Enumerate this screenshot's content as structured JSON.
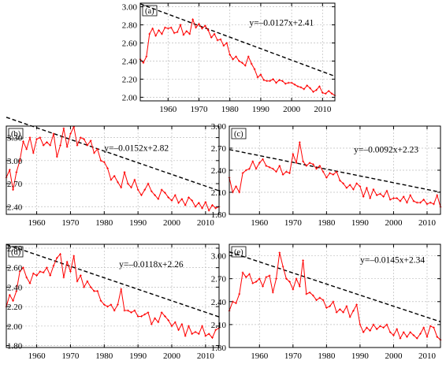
{
  "chart_data": [
    {
      "panel_label": "(a)",
      "type": "line",
      "equation": "y=–0.0127x+2.41",
      "x_start": 1951,
      "x": "1951-2014",
      "values": [
        2.42,
        2.38,
        2.45,
        2.7,
        2.76,
        2.68,
        2.74,
        2.7,
        2.77,
        2.76,
        2.77,
        2.71,
        2.72,
        2.8,
        2.69,
        2.73,
        2.7,
        2.86,
        2.77,
        2.81,
        2.76,
        2.79,
        2.74,
        2.66,
        2.7,
        2.63,
        2.64,
        2.57,
        2.6,
        2.47,
        2.42,
        2.45,
        2.4,
        2.38,
        2.35,
        2.45,
        2.37,
        2.31,
        2.22,
        2.25,
        2.19,
        2.18,
        2.18,
        2.2,
        2.16,
        2.19,
        2.18,
        2.15,
        2.16,
        2.16,
        2.14,
        2.12,
        2.11,
        2.09,
        2.13,
        2.1,
        2.06,
        2.08,
        2.12,
        2.05,
        2.04,
        2.07,
        2.04,
        2.02
      ],
      "trend": {
        "slope": -0.0127,
        "intercept": 2.41
      },
      "xlim": [
        1951,
        2014
      ],
      "ylim": [
        1.96,
        3.04
      ],
      "xticks": [
        1960,
        1970,
        1980,
        1990,
        2000,
        2010
      ],
      "yticks": [
        "2.00",
        "2.20",
        "2.40",
        "2.60",
        "2.80",
        "3.00"
      ],
      "grid": true,
      "colors": {
        "series": "#ff0000",
        "trend": "#000000",
        "grid": "#bdbdbd"
      }
    },
    {
      "panel_label": "(b)",
      "type": "line",
      "equation": "y=–0.0152x+2.82",
      "x_start": 1951,
      "x": "1951-2014",
      "values": [
        2.78,
        2.88,
        2.62,
        2.85,
        3.0,
        3.25,
        3.15,
        3.3,
        3.1,
        3.28,
        3.3,
        3.2,
        3.24,
        3.2,
        3.35,
        3.05,
        3.2,
        3.42,
        3.18,
        3.35,
        3.44,
        3.2,
        3.3,
        3.28,
        3.2,
        3.26,
        3.1,
        3.15,
        3.0,
        2.98,
        2.9,
        2.75,
        2.8,
        2.72,
        2.65,
        2.85,
        2.7,
        2.65,
        2.75,
        2.62,
        2.55,
        2.62,
        2.7,
        2.6,
        2.55,
        2.5,
        2.62,
        2.58,
        2.52,
        2.48,
        2.55,
        2.45,
        2.5,
        2.42,
        2.52,
        2.48,
        2.4,
        2.45,
        2.38,
        2.46,
        2.35,
        2.42,
        2.38,
        2.4
      ],
      "trend": {
        "slope": -0.0152,
        "intercept": 2.82
      },
      "xlim": [
        1951,
        2014
      ],
      "ylim": [
        2.3,
        3.45
      ],
      "xticks": [
        1960,
        1970,
        1980,
        1990,
        2000,
        2010
      ],
      "yticks": [
        "2.40",
        "2.70",
        "3.00",
        "3.30"
      ],
      "grid": true,
      "colors": {
        "series": "#ff0000",
        "trend": "#000000",
        "grid": "#bdbdbd"
      }
    },
    {
      "panel_label": "(c)",
      "type": "line",
      "equation": "y=–0.0092x+2.23",
      "x_start": 1951,
      "x": "1951-2014",
      "values": [
        2.3,
        2.1,
        2.18,
        2.1,
        2.36,
        2.4,
        2.42,
        2.52,
        2.42,
        2.5,
        2.55,
        2.46,
        2.44,
        2.42,
        2.38,
        2.46,
        2.34,
        2.38,
        2.36,
        2.62,
        2.5,
        2.78,
        2.52,
        2.46,
        2.5,
        2.48,
        2.42,
        2.46,
        2.38,
        2.3,
        2.36,
        2.34,
        2.38,
        2.26,
        2.22,
        2.16,
        2.2,
        2.14,
        2.22,
        2.18,
        2.04,
        2.16,
        2.02,
        2.14,
        2.06,
        2.08,
        2.04,
        2.12,
        2.0,
        2.02,
        2.02,
        1.98,
        2.04,
        1.96,
        2.06,
        1.98,
        1.96,
        1.96,
        2.0,
        1.94,
        1.96,
        1.94,
        2.06,
        1.9
      ],
      "trend": {
        "slope": -0.0092,
        "intercept": 2.23
      },
      "xlim": [
        1951,
        2014
      ],
      "ylim": [
        1.8,
        3.0
      ],
      "xticks": [
        1960,
        1970,
        1980,
        1990,
        2000,
        2010
      ],
      "yticks": [
        "1.80",
        "2.10",
        "2.40",
        "2.70",
        "3.00"
      ],
      "grid": true,
      "colors": {
        "series": "#ff0000",
        "trend": "#000000",
        "grid": "#bdbdbd"
      }
    },
    {
      "panel_label": "(d)",
      "type": "line",
      "equation": "y=–0.0118x+2.26",
      "x_start": 1951,
      "x": "1951-2014",
      "values": [
        2.2,
        2.32,
        2.26,
        2.36,
        2.56,
        2.6,
        2.5,
        2.44,
        2.54,
        2.52,
        2.56,
        2.55,
        2.6,
        2.52,
        2.62,
        2.7,
        2.74,
        2.5,
        2.66,
        2.56,
        2.72,
        2.46,
        2.52,
        2.4,
        2.46,
        2.4,
        2.36,
        2.36,
        2.26,
        2.22,
        2.2,
        2.22,
        2.16,
        2.22,
        2.38,
        2.16,
        2.16,
        2.14,
        2.16,
        2.1,
        2.1,
        2.12,
        2.14,
        2.02,
        2.08,
        2.04,
        2.14,
        2.1,
        2.06,
        2.0,
        2.04,
        1.96,
        2.02,
        1.9,
        2.0,
        1.92,
        1.94,
        1.92,
        2.0,
        1.9,
        1.92,
        1.88,
        1.96,
        1.98
      ],
      "trend": {
        "slope": -0.0118,
        "intercept": 2.26
      },
      "xlim": [
        1951,
        2014
      ],
      "ylim": [
        1.78,
        2.84
      ],
      "xticks": [
        1960,
        1970,
        1980,
        1990,
        2000,
        2010
      ],
      "yticks": [
        "1.80",
        "2.00",
        "2.20",
        "2.40",
        "2.60",
        "2.80"
      ],
      "grid": true,
      "colors": {
        "series": "#ff0000",
        "trend": "#000000",
        "grid": "#bdbdbd"
      }
    },
    {
      "panel_label": "(e)",
      "type": "line",
      "equation": "y=–0.0145x+2.34",
      "x_start": 1951,
      "x": "1951-2014",
      "values": [
        2.28,
        2.4,
        2.38,
        2.5,
        2.78,
        2.72,
        2.76,
        2.64,
        2.66,
        2.7,
        2.6,
        2.72,
        2.74,
        2.52,
        2.7,
        3.04,
        2.86,
        2.7,
        2.66,
        2.56,
        2.7,
        2.6,
        2.94,
        2.5,
        2.52,
        2.48,
        2.42,
        2.45,
        2.42,
        2.32,
        2.34,
        2.4,
        2.26,
        2.3,
        2.26,
        2.34,
        2.2,
        2.28,
        2.36,
        2.1,
        2.0,
        2.06,
        2.02,
        2.1,
        2.04,
        2.08,
        2.06,
        2.1,
        2.0,
        1.96,
        2.04,
        1.92,
        2.0,
        1.94,
        2.0,
        1.96,
        1.92,
        1.98,
        2.06,
        1.94,
        2.08,
        2.06,
        1.94,
        1.9
      ],
      "trend": {
        "slope": -0.0145,
        "intercept": 2.34
      },
      "xlim": [
        1951,
        2014
      ],
      "ylim": [
        1.8,
        3.15
      ],
      "xticks": [
        1960,
        1970,
        1980,
        1990,
        2000,
        2010
      ],
      "yticks": [
        "1.80",
        "2.10",
        "2.40",
        "2.70",
        "3.00"
      ],
      "grid": true,
      "colors": {
        "series": "#ff0000",
        "trend": "#000000",
        "grid": "#bdbdbd"
      }
    }
  ]
}
